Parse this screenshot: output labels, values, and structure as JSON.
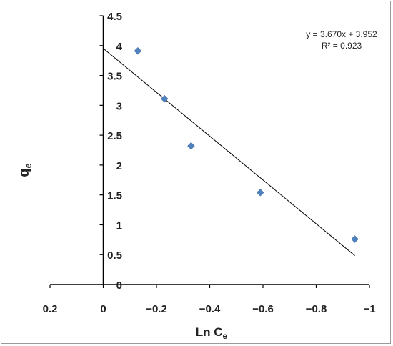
{
  "chart_data": {
    "type": "scatter",
    "title": "",
    "xlabel": "Ln C",
    "xlabel_sub": "e",
    "ylabel": "q",
    "ylabel_sub": "e",
    "x_reversed": true,
    "xlim": [
      0.2,
      -1
    ],
    "ylim": [
      0,
      4.5
    ],
    "x_ticks": [
      0.2,
      0,
      -0.2,
      -0.4,
      -0.6,
      -0.8,
      -1
    ],
    "x_tick_labels": [
      "0.2",
      "0",
      "−0.2",
      "−0.4",
      "−0.6",
      "−0.8",
      "−1"
    ],
    "y_ticks": [
      0,
      0.5,
      1,
      1.5,
      2,
      2.5,
      3,
      3.5,
      4,
      4.5
    ],
    "y_tick_labels": [
      "0",
      "0.5",
      "1",
      "1.5",
      "2",
      "2.5",
      "3",
      "3.5",
      "4",
      "4.5"
    ],
    "grid": false,
    "points": [
      {
        "x": -0.13,
        "y": 3.91
      },
      {
        "x": -0.23,
        "y": 3.11
      },
      {
        "x": -0.33,
        "y": 2.32
      },
      {
        "x": -0.59,
        "y": 1.54
      },
      {
        "x": -0.945,
        "y": 0.76
      }
    ],
    "trendline": {
      "slope": 3.67,
      "intercept": 3.952,
      "x_range": [
        0,
        -0.945
      ],
      "equation_label": "y = 3.670x + 3.952",
      "r2_label": "R² = 0.923"
    },
    "marker_color": "#4f81bd",
    "trendline_color": "#000000"
  }
}
